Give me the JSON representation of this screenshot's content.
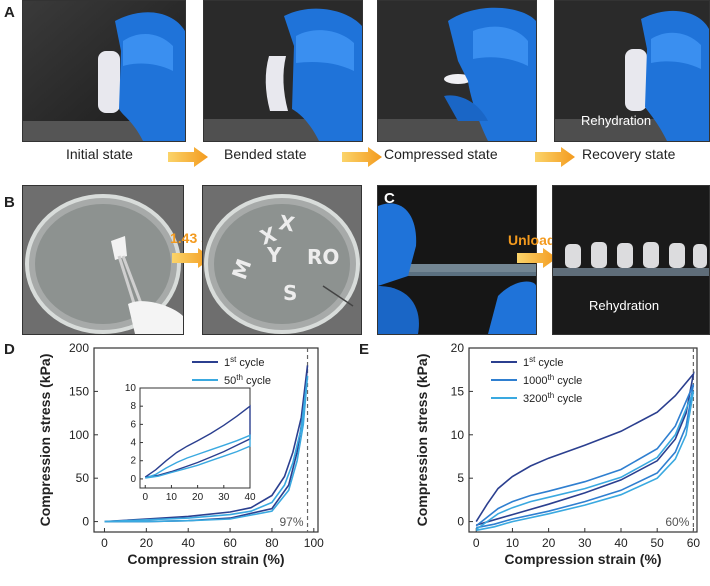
{
  "panelA": {
    "letter": "A",
    "captions": [
      "Initial state",
      "Bended state",
      "Compressed state",
      "Recovery state"
    ],
    "overlay": "Rehydration"
  },
  "panelB": {
    "letter": "B",
    "time_label": "1.43 s"
  },
  "panelC": {
    "letter": "C",
    "unload_label": "Unload",
    "overlay": "Rehydration"
  },
  "colors": {
    "dark_blue": "#2b3f8f",
    "light_blue": "#3aa9e0",
    "mid_blue": "#2f7fd0",
    "orange": "#f39a1e"
  },
  "chart_data": [
    {
      "panel": "D",
      "type": "line",
      "xlabel": "Compression strain (%)",
      "ylabel": "Compression stress (kPa)",
      "xlim": [
        -5,
        102
      ],
      "ylim": [
        -12,
        200
      ],
      "xticks": [
        0,
        20,
        40,
        60,
        80,
        100
      ],
      "yticks": [
        0,
        50,
        100,
        150,
        200
      ],
      "annotation": {
        "x": 97,
        "label": "97%"
      },
      "series": [
        {
          "name": "1st cycle",
          "label_base": "1",
          "label_sup": "st",
          "label_rest": " cycle",
          "loading": [
            [
              0,
              0
            ],
            [
              20,
              3
            ],
            [
              40,
              6
            ],
            [
              60,
              11
            ],
            [
              70,
              16
            ],
            [
              80,
              30
            ],
            [
              86,
              52
            ],
            [
              90,
              80
            ],
            [
              94,
              120
            ],
            [
              97,
              180
            ]
          ],
          "unloading": [
            [
              97,
              180
            ],
            [
              95,
              125
            ],
            [
              92,
              80
            ],
            [
              88,
              42
            ],
            [
              80,
              15
            ],
            [
              60,
              4
            ],
            [
              40,
              1
            ],
            [
              20,
              0
            ],
            [
              0,
              0
            ]
          ]
        },
        {
          "name": "50th cycle",
          "label_base": "50",
          "label_sup": "th",
          "label_rest": " cycle",
          "loading": [
            [
              0,
              0
            ],
            [
              20,
              2
            ],
            [
              40,
              4
            ],
            [
              60,
              8
            ],
            [
              70,
              12
            ],
            [
              80,
              22
            ],
            [
              86,
              42
            ],
            [
              90,
              68
            ],
            [
              94,
              108
            ],
            [
              97,
              168
            ]
          ],
          "unloading": [
            [
              97,
              168
            ],
            [
              95,
              112
            ],
            [
              92,
              70
            ],
            [
              88,
              36
            ],
            [
              80,
              12
            ],
            [
              60,
              3
            ],
            [
              40,
              1
            ],
            [
              20,
              0
            ],
            [
              0,
              0
            ]
          ]
        }
      ],
      "inset": {
        "xlim": [
          -2,
          40
        ],
        "ylim": [
          -1,
          10
        ],
        "xticks": [
          0,
          10,
          20,
          30,
          40
        ],
        "yticks": [
          0,
          2,
          4,
          6,
          8,
          10
        ],
        "series": [
          {
            "name": "1st cycle",
            "loading": [
              [
                0,
                0.2
              ],
              [
                4,
                1
              ],
              [
                8,
                2
              ],
              [
                12,
                2.9
              ],
              [
                16,
                3.6
              ],
              [
                20,
                4.2
              ],
              [
                25,
                5
              ],
              [
                30,
                5.9
              ],
              [
                35,
                6.9
              ],
              [
                40,
                8
              ]
            ],
            "unloading": [
              [
                40,
                4.4
              ],
              [
                35,
                3.7
              ],
              [
                30,
                3
              ],
              [
                25,
                2.4
              ],
              [
                20,
                1.8
              ],
              [
                15,
                1.3
              ],
              [
                10,
                0.8
              ],
              [
                5,
                0.4
              ],
              [
                0,
                0.2
              ]
            ]
          },
          {
            "name": "50th cycle",
            "loading": [
              [
                0,
                0.1
              ],
              [
                4,
                0.5
              ],
              [
                8,
                1.2
              ],
              [
                12,
                1.8
              ],
              [
                16,
                2.3
              ],
              [
                20,
                2.7
              ],
              [
                25,
                3.2
              ],
              [
                30,
                3.7
              ],
              [
                35,
                4.2
              ],
              [
                40,
                4.8
              ]
            ],
            "unloading": [
              [
                40,
                3.6
              ],
              [
                35,
                3
              ],
              [
                30,
                2.5
              ],
              [
                25,
                2
              ],
              [
                20,
                1.5
              ],
              [
                15,
                1.1
              ],
              [
                10,
                0.7
              ],
              [
                5,
                0.3
              ],
              [
                0,
                0.1
              ]
            ]
          }
        ]
      }
    },
    {
      "panel": "E",
      "type": "line",
      "xlabel": "Compression strain (%)",
      "ylabel": "Compression stress (kPa)",
      "xlim": [
        -2,
        61
      ],
      "ylim": [
        -1.2,
        20
      ],
      "xticks": [
        0,
        10,
        20,
        30,
        40,
        50,
        60
      ],
      "yticks": [
        0,
        5,
        10,
        15,
        20
      ],
      "annotation": {
        "x": 60,
        "label": "60%"
      },
      "series": [
        {
          "name": "1st cycle",
          "label_base": "1",
          "label_sup": "st",
          "label_rest": " cycle",
          "loading": [
            [
              0,
              0
            ],
            [
              3,
              2
            ],
            [
              6,
              3.8
            ],
            [
              10,
              5.2
            ],
            [
              15,
              6.4
            ],
            [
              20,
              7.3
            ],
            [
              30,
              8.8
            ],
            [
              40,
              10.4
            ],
            [
              50,
              12.6
            ],
            [
              55,
              14.5
            ],
            [
              60,
              17
            ]
          ],
          "unloading": [
            [
              60,
              17
            ],
            [
              58,
              12.5
            ],
            [
              55,
              9.5
            ],
            [
              50,
              7
            ],
            [
              40,
              4.8
            ],
            [
              30,
              3.3
            ],
            [
              20,
              2
            ],
            [
              10,
              0.8
            ],
            [
              5,
              0.2
            ],
            [
              0,
              -0.4
            ]
          ]
        },
        {
          "name": "1000th cycle",
          "label_base": "1000",
          "label_sup": "th",
          "label_rest": " cycle",
          "loading": [
            [
              0,
              -0.5
            ],
            [
              3,
              0.5
            ],
            [
              6,
              1.5
            ],
            [
              10,
              2.3
            ],
            [
              15,
              3
            ],
            [
              20,
              3.5
            ],
            [
              30,
              4.6
            ],
            [
              40,
              6
            ],
            [
              50,
              8.4
            ],
            [
              55,
              11
            ],
            [
              60,
              15.8
            ]
          ],
          "unloading": [
            [
              60,
              15.8
            ],
            [
              58,
              11
            ],
            [
              55,
              8
            ],
            [
              50,
              5.6
            ],
            [
              40,
              3.6
            ],
            [
              30,
              2.3
            ],
            [
              20,
              1.2
            ],
            [
              10,
              0.3
            ],
            [
              5,
              -0.3
            ],
            [
              0,
              -0.7
            ]
          ]
        },
        {
          "name": "3200th cycle",
          "label_base": "3200",
          "label_sup": "th",
          "label_rest": " cycle",
          "loading": [
            [
              0,
              -0.9
            ],
            [
              3,
              0
            ],
            [
              6,
              0.9
            ],
            [
              10,
              1.6
            ],
            [
              15,
              2.3
            ],
            [
              20,
              2.8
            ],
            [
              30,
              3.8
            ],
            [
              40,
              5.1
            ],
            [
              50,
              7.4
            ],
            [
              55,
              10
            ],
            [
              60,
              15
            ]
          ],
          "unloading": [
            [
              60,
              15
            ],
            [
              58,
              10
            ],
            [
              55,
              7.2
            ],
            [
              50,
              5
            ],
            [
              40,
              3.1
            ],
            [
              30,
              1.9
            ],
            [
              20,
              0.9
            ],
            [
              10,
              0
            ],
            [
              5,
              -0.6
            ],
            [
              0,
              -1
            ]
          ]
        }
      ]
    }
  ]
}
